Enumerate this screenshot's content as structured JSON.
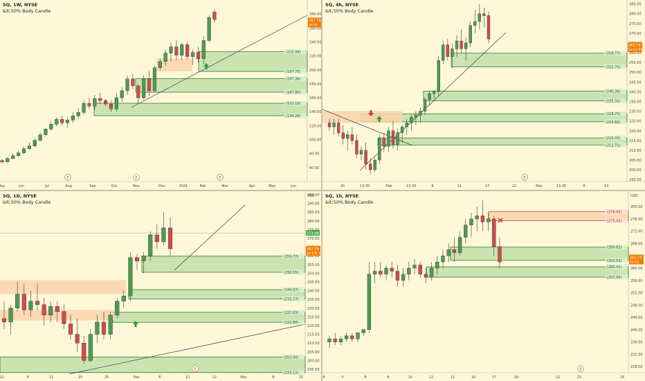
{
  "colors": {
    "background": "#fef8d9",
    "up": "#4f9a52",
    "down": "#d24b4b",
    "zone_fill": "#b9dca3",
    "zone_line": "#2e7d32",
    "supply_fill": "#f9d3ab",
    "supply_line": "#cc4444",
    "price_tag": "#f57c00"
  },
  "panels": [
    {
      "id": "w1",
      "title": "SQ, 1W, NYSE",
      "subtitle": "&lt;50% Body Candle",
      "ylim": [
        40,
        300
      ],
      "y_ticks": [
        "300.00",
        "280.00",
        "260.00",
        "240.00",
        "220.00",
        "200.00",
        "180.00",
        "160.00",
        "140.00",
        "120.00",
        "100.00",
        "80.00",
        "60.00"
      ],
      "x_ticks": [
        "May",
        "Jun",
        "Jul",
        "Aug",
        "Sep",
        "Oct",
        "Nov",
        "Dec",
        "2021",
        "Feb",
        "Mar",
        "Apr",
        "May",
        "Jun"
      ],
      "event_markers": [
        "E",
        "E",
        "E"
      ],
      "price_tag": [
        "267.79",
        "3d 5h"
      ],
      "zone_labels": [
        "(225.94)",
        "(197.70)",
        "(187.36)",
        "(167.95)",
        "(152.10)",
        "(134.26)"
      ]
    },
    {
      "id": "h4",
      "title": "SQ, 4h, NYSE",
      "subtitle": "&lt;50% Body Candle",
      "ylim": [
        194,
        287
      ],
      "y_ticks": [
        "285.00",
        "280.00",
        "275.00",
        "270.00",
        "265.00",
        "260.00",
        "255.00",
        "250.00",
        "245.00",
        "240.00",
        "235.00",
        "230.00",
        "225.00",
        "220.00",
        "215.00",
        "210.00",
        "205.00",
        "200.00",
        "195.00"
      ],
      "x_ticks": [
        "25",
        "13:30",
        "Feb",
        "13:30",
        "8",
        "11",
        "17",
        "22",
        "Mar",
        "13:30",
        "8",
        "13"
      ],
      "event_markers": [
        "E"
      ],
      "price_tag": [
        "262.79",
        "02:12:53"
      ],
      "zone_labels": [
        "(259.77)",
        "(252.75)",
        "(240.36)",
        "(235.31)",
        "(228.70)",
        "(224.60)",
        "(216.33)",
        "(212.71)"
      ]
    },
    {
      "id": "d1",
      "title": "SQ, 1D, NYSE",
      "subtitle": "&lt;50% Body Candle",
      "ylim": [
        193,
        297
      ],
      "y_ticks": [
        "USD",
        "295.00",
        "290.00",
        "285.00",
        "280.00",
        "275.00",
        "270.00",
        "265.00",
        "260.00",
        "255.00",
        "250.00",
        "245.00",
        "240.00",
        "235.00",
        "230.00",
        "225.00",
        "220.00",
        "215.00",
        "210.00",
        "205.00",
        "200.00",
        "195.00"
      ],
      "x_ticks": [
        "21",
        "4",
        "11",
        "15",
        "25",
        "Feb",
        "8",
        "12",
        "22",
        "Mar",
        "8",
        "15",
        "22"
      ],
      "event_markers": [
        "E"
      ],
      "price_tag": [
        "262.79",
        "3d 10h 14"
      ],
      "line_label": "273.08",
      "zone_labels": [
        "(259.77)",
        "(250.55)",
        "(240.57)",
        "(235.27)",
        "(227.63)",
        "(221.88)",
        "(202.00)",
        "(193.12)"
      ]
    },
    {
      "id": "h1",
      "title": "SQ, 1h, NYSE",
      "subtitle": "&lt;50% Body Candle",
      "ylim": [
        226,
        285
      ],
      "y_ticks": [
        "USD",
        "280.00",
        "276.00",
        "272.00",
        "268.00",
        "264.00",
        "260.00",
        "256.00",
        "252.00",
        "248.00",
        "244.00",
        "240.00",
        "236.00",
        "232.00",
        "228.00"
      ],
      "x_ticks": [
        "4",
        "5",
        "8",
        "9",
        "10",
        "11",
        "12",
        "16",
        "17",
        "18",
        "22",
        "23",
        "25"
      ],
      "event_markers": [
        "E"
      ],
      "price_tag": [
        "262.79",
        "12:52"
      ],
      "zone_labels": [
        "(278.40)",
        "(275.42)",
        "(266.82)",
        "(262.53)",
        "(260.41)",
        "(257.06)"
      ]
    }
  ],
  "chart_data": [
    {
      "type": "candlestick",
      "title": "SQ, 1W, NYSE",
      "subtitle": "&lt;50% Body Candle",
      "x_axis": [
        "May",
        "Jun",
        "Jul",
        "Aug",
        "Sep",
        "Oct",
        "Nov",
        "Dec",
        "2021",
        "Feb",
        "Mar",
        "Apr",
        "May",
        "Jun"
      ],
      "ylim": [
        40,
        300
      ],
      "last_price": 267.79,
      "candles": [
        [
          70,
          72,
          66,
          68
        ],
        [
          68,
          75,
          67,
          73
        ],
        [
          73,
          80,
          72,
          77
        ],
        [
          77,
          84,
          75,
          81
        ],
        [
          81,
          90,
          79,
          87
        ],
        [
          87,
          96,
          85,
          91
        ],
        [
          91,
          102,
          89,
          99
        ],
        [
          99,
          110,
          97,
          107
        ],
        [
          107,
          117,
          104,
          115
        ],
        [
          115,
          126,
          113,
          122
        ],
        [
          122,
          132,
          119,
          129
        ],
        [
          129,
          134,
          120,
          124
        ],
        [
          124,
          132,
          117,
          128
        ],
        [
          128,
          139,
          124,
          134
        ],
        [
          134,
          145,
          130,
          139
        ],
        [
          139,
          156,
          136,
          152
        ],
        [
          152,
          160,
          144,
          148
        ],
        [
          148,
          164,
          143,
          159
        ],
        [
          159,
          167,
          151,
          156
        ],
        [
          156,
          158,
          148,
          151
        ],
        [
          151,
          156,
          140,
          144
        ],
        [
          144,
          166,
          140,
          160
        ],
        [
          160,
          175,
          154,
          170
        ],
        [
          170,
          192,
          164,
          187
        ],
        [
          187,
          194,
          172,
          177
        ],
        [
          177,
          180,
          152,
          160
        ],
        [
          160,
          192,
          157,
          187
        ],
        [
          187,
          198,
          162,
          170
        ],
        [
          170,
          206,
          168,
          203
        ],
        [
          203,
          216,
          199,
          212
        ],
        [
          212,
          229,
          206,
          224
        ],
        [
          224,
          239,
          212,
          233
        ],
        [
          233,
          243,
          214,
          221
        ],
        [
          221,
          239,
          214,
          236
        ],
        [
          236,
          240,
          215,
          219
        ],
        [
          219,
          229,
          207,
          225
        ],
        [
          225,
          233,
          210,
          216
        ],
        [
          216,
          248,
          208,
          242
        ],
        [
          242,
          278,
          240,
          275
        ],
        [
          283,
          287,
          268,
          272
        ]
      ],
      "zones": [
        {
          "kind": "demand",
          "high": 225.94,
          "low": 197.7
        },
        {
          "kind": "demand",
          "high": 187.36,
          "low": 167.95
        },
        {
          "kind": "demand",
          "high": 152.1,
          "low": 134.26
        },
        {
          "kind": "supply",
          "high": 216,
          "low": 198
        }
      ],
      "event_markers": [
        "E",
        "E",
        "E"
      ]
    },
    {
      "type": "candlestick",
      "title": "SQ, 4h, NYSE",
      "subtitle": "&lt;50% Body Candle",
      "x_axis": [
        "25",
        "13:30",
        "Feb",
        "13:30",
        "8",
        "11",
        "17",
        "22",
        "Mar",
        "13:30",
        "8",
        "13"
      ],
      "ylim": [
        194,
        287
      ],
      "last_price": 262.79,
      "candles": [
        [
          224,
          226,
          220,
          222
        ],
        [
          222,
          226,
          218,
          224
        ],
        [
          224,
          226,
          217,
          219
        ],
        [
          219,
          223,
          213,
          216
        ],
        [
          216,
          220,
          210,
          218
        ],
        [
          218,
          222,
          213,
          215
        ],
        [
          215,
          218,
          206,
          208
        ],
        [
          208,
          212,
          205,
          210
        ],
        [
          210,
          214,
          200,
          203
        ],
        [
          203,
          206,
          198,
          200
        ],
        [
          200,
          206,
          199,
          205
        ],
        [
          205,
          218,
          203,
          216
        ],
        [
          216,
          219,
          209,
          212
        ],
        [
          212,
          222,
          209,
          220
        ],
        [
          220,
          225,
          211,
          213
        ],
        [
          213,
          221,
          210,
          219
        ],
        [
          219,
          223,
          214,
          222
        ],
        [
          222,
          226,
          218,
          224
        ],
        [
          224,
          228,
          220,
          227
        ],
        [
          227,
          230,
          223,
          228
        ],
        [
          228,
          232,
          224,
          230
        ],
        [
          230,
          237,
          228,
          236
        ],
        [
          236,
          240,
          233,
          239
        ],
        [
          239,
          241,
          236,
          240
        ],
        [
          240,
          258,
          238,
          256
        ],
        [
          256,
          266,
          254,
          264
        ],
        [
          264,
          267,
          256,
          258
        ],
        [
          258,
          265,
          252,
          262
        ],
        [
          262,
          269,
          258,
          266
        ],
        [
          266,
          272,
          260,
          262
        ],
        [
          262,
          268,
          256,
          265
        ],
        [
          265,
          276,
          263,
          274
        ],
        [
          274,
          282,
          270,
          276
        ],
        [
          276,
          285,
          272,
          280
        ],
        [
          280,
          283,
          273,
          279
        ],
        [
          279,
          281,
          265,
          267
        ]
      ],
      "zones": [
        {
          "kind": "demand",
          "high": 259.77,
          "low": 252.75
        },
        {
          "kind": "demand",
          "high": 240.36,
          "low": 235.31
        },
        {
          "kind": "demand",
          "high": 228.7,
          "low": 224.6
        },
        {
          "kind": "demand",
          "high": 216.33,
          "low": 212.71
        },
        {
          "kind": "supply",
          "high": 230,
          "low": 224
        }
      ],
      "event_markers": [
        "E"
      ]
    },
    {
      "type": "candlestick",
      "title": "SQ, 1D, NYSE",
      "subtitle": "&lt;50% Body Candle",
      "x_axis": [
        "21",
        "4",
        "11",
        "15",
        "25",
        "Feb",
        "8",
        "12",
        "22",
        "Mar",
        "8",
        "15",
        "22"
      ],
      "ylim": [
        193,
        297
      ],
      "last_price": 262.79,
      "reference_line": 273.08,
      "candles": [
        [
          224,
          234,
          218,
          222
        ],
        [
          222,
          232,
          215,
          230
        ],
        [
          230,
          245,
          228,
          238
        ],
        [
          238,
          244,
          226,
          229
        ],
        [
          229,
          240,
          225,
          234
        ],
        [
          234,
          244,
          229,
          232
        ],
        [
          232,
          236,
          220,
          226
        ],
        [
          226,
          234,
          222,
          231
        ],
        [
          231,
          234,
          222,
          228
        ],
        [
          228,
          232,
          218,
          221
        ],
        [
          221,
          226,
          212,
          215
        ],
        [
          215,
          224,
          205,
          210
        ],
        [
          210,
          214,
          198,
          200
        ],
        [
          200,
          218,
          199,
          215
        ],
        [
          215,
          226,
          210,
          222
        ],
        [
          222,
          228,
          212,
          215
        ],
        [
          215,
          228,
          212,
          226
        ],
        [
          226,
          236,
          224,
          234
        ],
        [
          234,
          240,
          230,
          237
        ],
        [
          237,
          262,
          234,
          259
        ],
        [
          259,
          261,
          252,
          257
        ],
        [
          257,
          262,
          250,
          260
        ],
        [
          260,
          274,
          257,
          272
        ],
        [
          272,
          278,
          264,
          268
        ],
        [
          268,
          285,
          266,
          276
        ],
        [
          276,
          282,
          260,
          264
        ]
      ],
      "zones": [
        {
          "kind": "demand",
          "high": 259.77,
          "low": 250.55
        },
        {
          "kind": "demand",
          "high": 240.57,
          "low": 235.27
        },
        {
          "kind": "demand",
          "high": 227.63,
          "low": 221.88
        },
        {
          "kind": "demand",
          "high": 202.0,
          "low": 193.12
        },
        {
          "kind": "supply",
          "high": 246,
          "low": 238
        },
        {
          "kind": "supply",
          "high": 229,
          "low": 223
        }
      ],
      "event_markers": [
        "E"
      ]
    },
    {
      "type": "candlestick",
      "title": "SQ, 1h, NYSE",
      "subtitle": "&lt;50% Body Candle",
      "x_axis": [
        "4",
        "5",
        "8",
        "9",
        "10",
        "11",
        "12",
        "16",
        "17",
        "18",
        "22",
        "23",
        "25"
      ],
      "ylim": [
        226,
        285
      ],
      "last_price": 262.79,
      "candles": [
        [
          236,
          238,
          234,
          237
        ],
        [
          237,
          239,
          235,
          236
        ],
        [
          236,
          238,
          235,
          237
        ],
        [
          237,
          239,
          236,
          238
        ],
        [
          238,
          239,
          236,
          237
        ],
        [
          237,
          239,
          236,
          239
        ],
        [
          239,
          240,
          238,
          240
        ],
        [
          240,
          262,
          239,
          258
        ],
        [
          258,
          262,
          255,
          259
        ],
        [
          259,
          262,
          257,
          258
        ],
        [
          258,
          261,
          256,
          260
        ],
        [
          260,
          262,
          257,
          259
        ],
        [
          259,
          261,
          254,
          256
        ],
        [
          256,
          260,
          254,
          258
        ],
        [
          258,
          262,
          256,
          260
        ],
        [
          260,
          263,
          258,
          261
        ],
        [
          261,
          262,
          257,
          258
        ],
        [
          258,
          260,
          255,
          257
        ],
        [
          257,
          262,
          256,
          260
        ],
        [
          260,
          264,
          258,
          262
        ],
        [
          262,
          266,
          260,
          264
        ],
        [
          264,
          268,
          262,
          266
        ],
        [
          266,
          270,
          262,
          265
        ],
        [
          265,
          272,
          264,
          270
        ],
        [
          270,
          276,
          268,
          274
        ],
        [
          274,
          278,
          270,
          276
        ],
        [
          276,
          280,
          272,
          277
        ],
        [
          277,
          282,
          272,
          275
        ],
        [
          275,
          278,
          272,
          276
        ],
        [
          276,
          277,
          264,
          267
        ],
        [
          267,
          270,
          260,
          262
        ]
      ],
      "zones": [
        {
          "kind": "supply",
          "high": 278.4,
          "low": 275.42
        },
        {
          "kind": "demand",
          "high": 266.82,
          "low": 262.53
        },
        {
          "kind": "demand",
          "high": 260.41,
          "low": 257.06
        }
      ],
      "event_markers": [
        "E"
      ]
    }
  ]
}
